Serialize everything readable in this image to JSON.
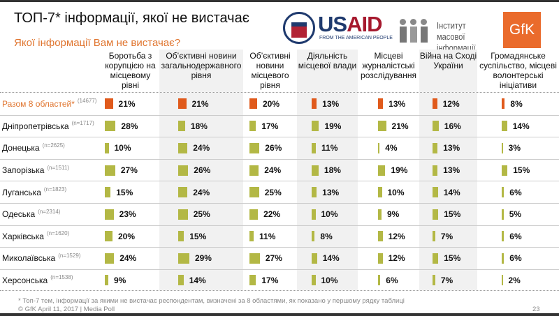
{
  "title": "ТОП-7* інформації, якої не вистачає",
  "subtitle": "Якої інформації Вам не вистачає?",
  "logos": {
    "usaid_us": "US",
    "usaid_aid": "AID",
    "usaid_tagline": "FROM THE AMERICAN PEOPLE",
    "imi": "Інститут масової інформації",
    "gfk": "GfK"
  },
  "colors": {
    "total_bar": "#e05a1c",
    "region_bar": "#b3b845",
    "accent_text": "#e0752f"
  },
  "columns": [
    "Боротьба з корупцією на місцевому рівні",
    "Об’єктивні новини загальнодержавного рівня",
    "Об’єктивні новини місцевого рівня",
    "Діяльність місцевої влади",
    "Місцеві журналістські розслідування",
    "Війна на Сході України",
    "Громадянське суспільство, місцеві волонтерські ініціативи"
  ],
  "rows": [
    {
      "label": "Разом 8 областей*",
      "n": "(14677)",
      "values": [
        21,
        21,
        20,
        13,
        13,
        12,
        8
      ]
    },
    {
      "label": "Дніпропетрівська",
      "n": "(n=1717)",
      "values": [
        28,
        18,
        17,
        19,
        21,
        16,
        14
      ]
    },
    {
      "label": "Донецька",
      "n": "(n=2625)",
      "values": [
        10,
        24,
        26,
        11,
        4,
        13,
        3
      ]
    },
    {
      "label": "Запорізька",
      "n": "(n=1511)",
      "values": [
        27,
        26,
        24,
        18,
        19,
        13,
        15
      ]
    },
    {
      "label": "Луганська",
      "n": "(n=1823)",
      "values": [
        15,
        24,
        25,
        13,
        10,
        14,
        6
      ]
    },
    {
      "label": "Одеська",
      "n": "(n=2314)",
      "values": [
        23,
        25,
        22,
        10,
        9,
        15,
        5
      ]
    },
    {
      "label": "Харківська",
      "n": "(n=1620)",
      "values": [
        20,
        15,
        11,
        8,
        12,
        7,
        6
      ]
    },
    {
      "label": "Миколаївська",
      "n": "(n=1529)",
      "values": [
        24,
        29,
        27,
        14,
        12,
        15,
        6
      ]
    },
    {
      "label": "Херсонська",
      "n": "(n=1538)",
      "values": [
        9,
        14,
        17,
        10,
        6,
        7,
        2
      ]
    }
  ],
  "footnote": "* Топ-7 тем, інформації за якими не вистачає респондентам, визначені за 8 областями, як показано у першому рядку таблиці",
  "copyright": "© GfK April 11, 2017 | Media Poll",
  "page_number": "23"
}
